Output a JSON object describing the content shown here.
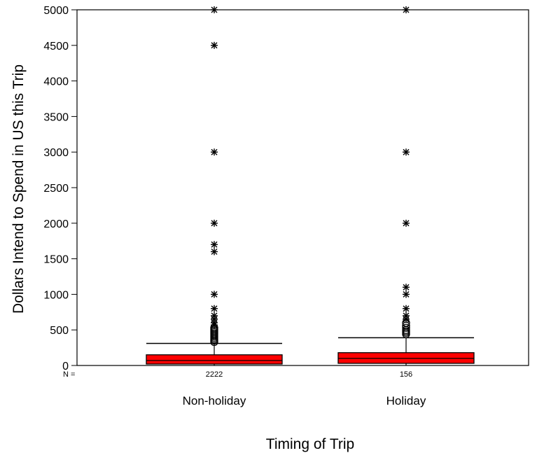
{
  "chart_data": {
    "type": "box",
    "title": "",
    "xlabel": "Timing of Trip",
    "ylabel": "Dollars Intend to Spend in US this Trip",
    "ylim": [
      0,
      5000
    ],
    "yticks": [
      0,
      500,
      1000,
      1500,
      2000,
      2500,
      3000,
      3500,
      4000,
      4500,
      5000
    ],
    "n_prefix": "N =",
    "categories": [
      "Non-holiday",
      "Holiday"
    ],
    "n_values": [
      "2222",
      "156"
    ],
    "box_color": "#ff0000",
    "boxes": [
      {
        "name": "Non-holiday",
        "q1": 20,
        "median": 70,
        "q3": 150,
        "whisker_low": 0,
        "whisker_high": 310,
        "outliers_circle": [
          330,
          350,
          370,
          390,
          410,
          430,
          450,
          470,
          490,
          510,
          530
        ],
        "outliers_star": [
          570,
          600,
          650,
          700,
          800,
          1000,
          1600,
          1700,
          2000,
          3000,
          4500,
          5000
        ]
      },
      {
        "name": "Holiday",
        "q1": 30,
        "median": 100,
        "q3": 180,
        "whisker_low": 0,
        "whisker_high": 390,
        "outliers_circle": [
          440,
          460,
          480,
          500,
          530,
          560,
          600
        ],
        "outliers_star": [
          650,
          700,
          800,
          1000,
          1100,
          2000,
          3000,
          5000
        ]
      }
    ]
  }
}
